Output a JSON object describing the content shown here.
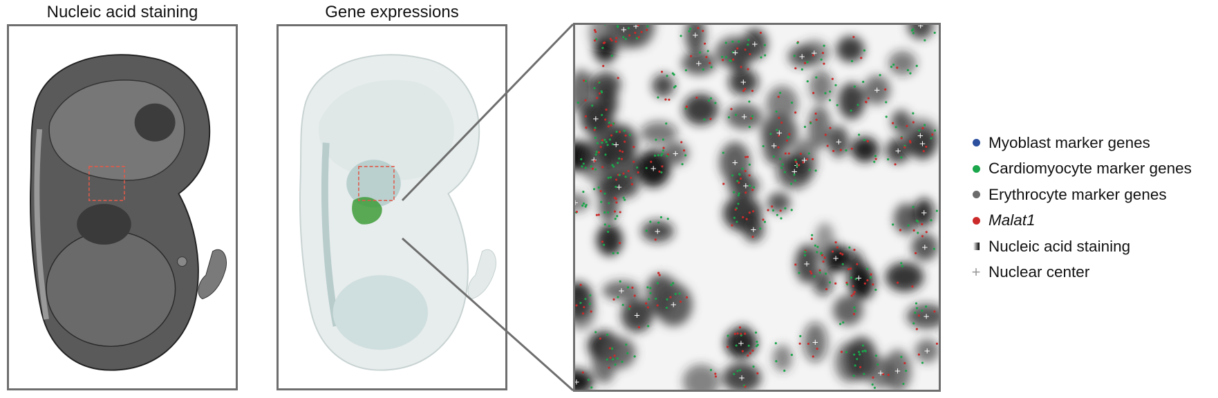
{
  "panels": {
    "staining_title": "Nucleic acid staining",
    "gene_title": "Gene expressions"
  },
  "legend": [
    {
      "label": "Myoblast marker genes",
      "marker": "dot",
      "color": "#2c4f9e",
      "italic": false
    },
    {
      "label": "Cardiomyocyte marker genes",
      "marker": "dot",
      "color": "#1aa64a",
      "italic": false
    },
    {
      "label": "Erythrocyte marker genes",
      "marker": "dot",
      "color": "#6b6b6b",
      "italic": false
    },
    {
      "label": "Malat1",
      "marker": "dot",
      "color": "#cc2a2a",
      "italic": true
    },
    {
      "label": "Nucleic acid staining",
      "marker": "gradient-square",
      "color": "#000000",
      "italic": false
    },
    {
      "label": "Nuclear center",
      "marker": "plus",
      "color": "#9a9a9a",
      "italic": false
    }
  ],
  "colors": {
    "frame": "#6e6e6e",
    "roi_box": "#e05a4a",
    "tissue_stain": "#4a4a4a",
    "tissue_gene": "#c9d6d6",
    "gene_cluster_teal": "#5f9a9a",
    "heart_green": "#3e9c3a"
  }
}
